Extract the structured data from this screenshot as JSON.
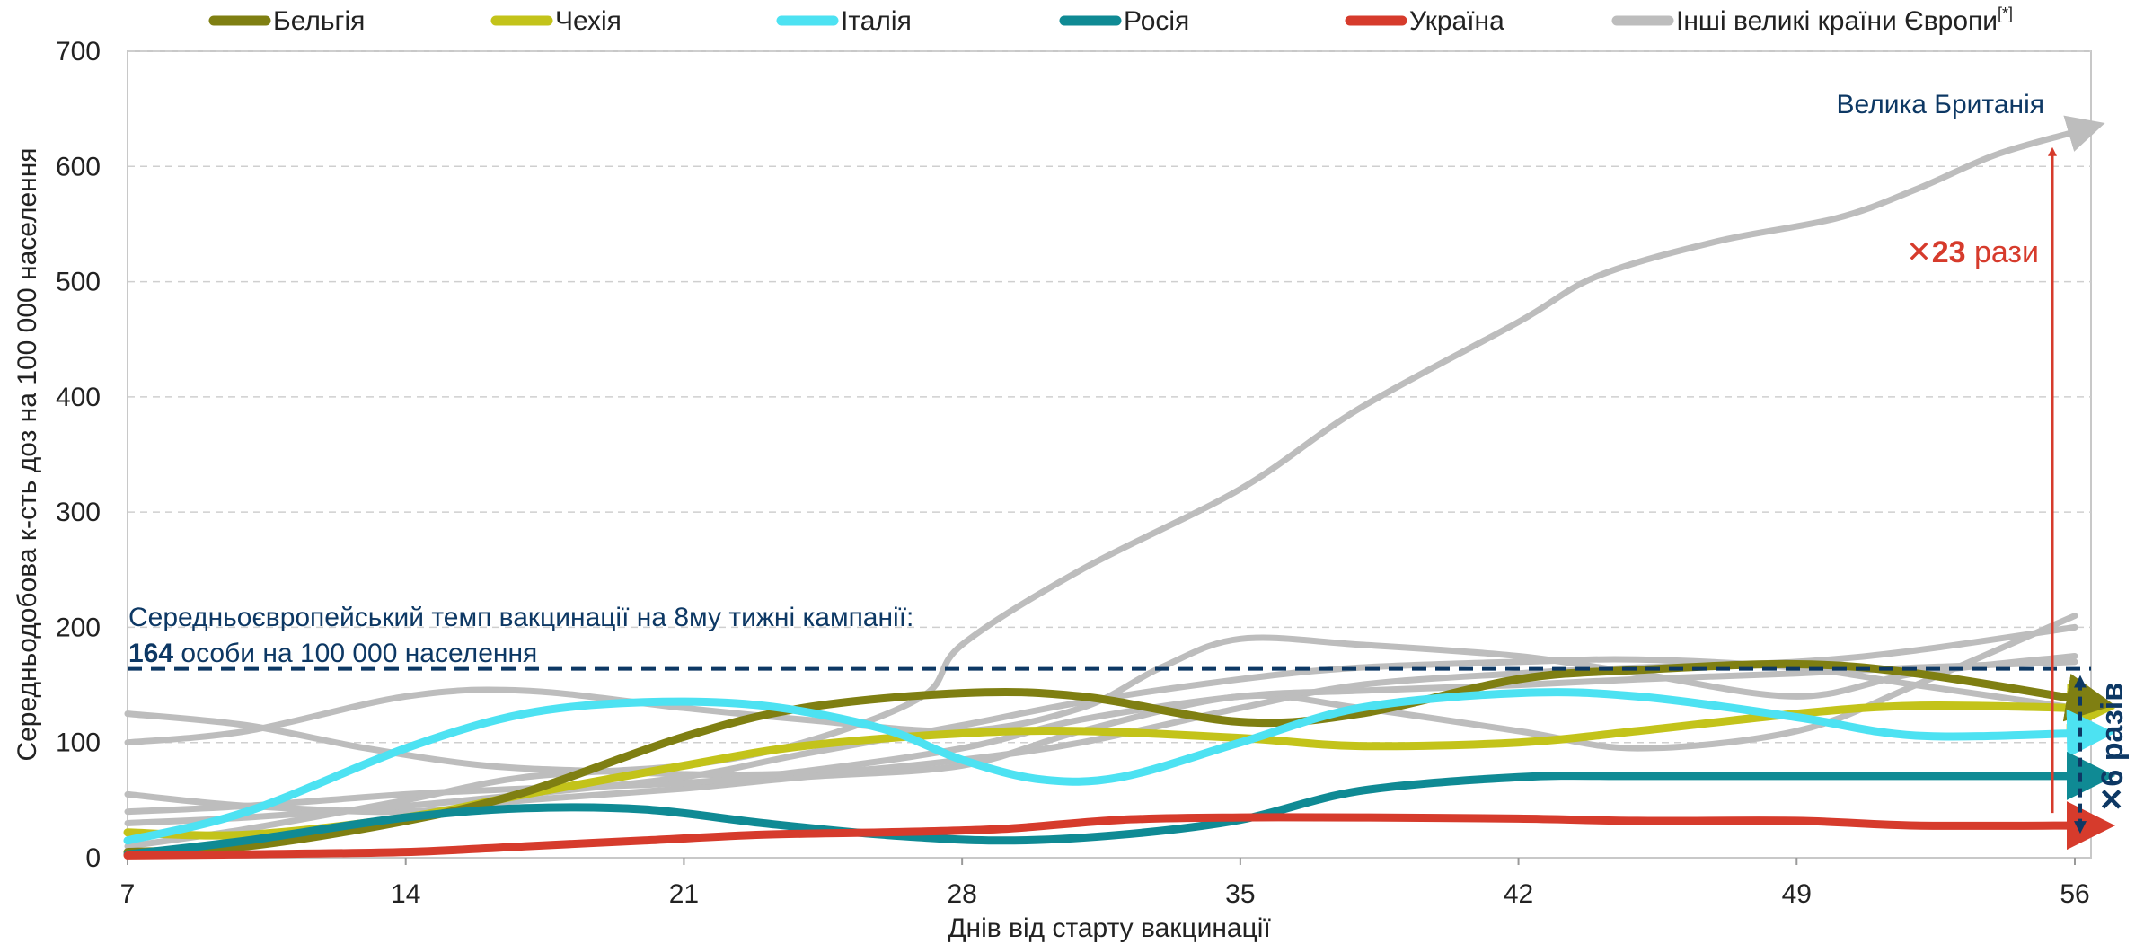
{
  "chart_data": {
    "type": "line",
    "xlabel": "Днів від старту вакцинації",
    "ylabel": "Середньодобова к-сть доз на 100 000 населення",
    "xlim": [
      7,
      56
    ],
    "ylim": [
      0,
      700
    ],
    "xticks": [
      7,
      14,
      21,
      28,
      35,
      42,
      49,
      56
    ],
    "yticks": [
      0,
      100,
      200,
      300,
      400,
      500,
      600,
      700
    ],
    "grid": "horizontal dashed",
    "legend": {
      "placement": "top",
      "superscript": "[*]"
    },
    "series": [
      {
        "name": "Бельгія",
        "color": "#7f7f12",
        "x": [
          7,
          10,
          14,
          17,
          21,
          24,
          28,
          31,
          35,
          38,
          42,
          45,
          49,
          52,
          56
        ],
        "y": [
          5,
          10,
          32,
          57,
          105,
          130,
          143,
          140,
          118,
          125,
          155,
          163,
          168,
          160,
          138
        ]
      },
      {
        "name": "Чехія",
        "color": "#c3c31a",
        "x": [
          7,
          10,
          14,
          17,
          21,
          24,
          28,
          31,
          35,
          38,
          42,
          45,
          49,
          52,
          56
        ],
        "y": [
          22,
          20,
          35,
          55,
          80,
          97,
          108,
          110,
          104,
          97,
          100,
          110,
          125,
          132,
          130
        ]
      },
      {
        "name": "Італія",
        "color": "#4de2f2",
        "x": [
          7,
          10,
          14,
          17,
          20,
          23,
          26,
          28,
          30,
          32,
          35,
          38,
          42,
          45,
          49,
          52,
          56
        ],
        "y": [
          15,
          40,
          95,
          125,
          135,
          132,
          112,
          85,
          68,
          70,
          100,
          130,
          143,
          140,
          122,
          106,
          108
        ]
      },
      {
        "name": "Росія",
        "color": "#0f8a94",
        "x": [
          7,
          10,
          14,
          17,
          20,
          23,
          26,
          29,
          32,
          35,
          38,
          42,
          45,
          49,
          52,
          56
        ],
        "y": [
          3,
          15,
          35,
          43,
          42,
          30,
          20,
          15,
          20,
          33,
          58,
          70,
          71,
          71,
          71,
          71
        ]
      },
      {
        "name": "Україна",
        "color": "#d63b2c",
        "x": [
          7,
          10,
          14,
          17,
          20,
          23,
          26,
          29,
          32,
          35,
          38,
          42,
          45,
          49,
          52,
          56
        ],
        "y": [
          2,
          3,
          5,
          10,
          15,
          20,
          22,
          25,
          33,
          35,
          35,
          34,
          32,
          32,
          28,
          28
        ]
      },
      {
        "name": "Інші великі країни Європи",
        "color": "#bdbdbd",
        "x": [
          7,
          10,
          14,
          17,
          21,
          24,
          27,
          28,
          31,
          35,
          38,
          42,
          44,
          47,
          50,
          52,
          54,
          56
        ],
        "y": [
          10,
          25,
          50,
          70,
          80,
          100,
          140,
          185,
          250,
          320,
          390,
          465,
          505,
          535,
          555,
          580,
          610,
          630
        ]
      },
      {
        "name": "Інші великі країни Європи",
        "color": "#bdbdbd",
        "x": [
          7,
          10,
          13,
          16,
          19,
          22,
          25,
          28,
          31,
          35,
          38,
          42,
          45,
          49,
          52,
          56
        ],
        "y": [
          125,
          115,
          95,
          80,
          75,
          72,
          75,
          85,
          100,
          130,
          150,
          160,
          165,
          170,
          180,
          200
        ]
      },
      {
        "name": "Інші великі країни Європи",
        "color": "#bdbdbd",
        "x": [
          7,
          10,
          14,
          17,
          21,
          24,
          28,
          31,
          33,
          35,
          38,
          42,
          45,
          49,
          52,
          56
        ],
        "y": [
          100,
          110,
          140,
          145,
          130,
          120,
          110,
          130,
          165,
          190,
          185,
          175,
          160,
          140,
          160,
          175
        ]
      },
      {
        "name": "Інші великі країни Європи",
        "color": "#bdbdbd",
        "x": [
          7,
          10,
          14,
          17,
          21,
          24,
          28,
          31,
          35,
          38,
          42,
          45,
          49,
          52,
          56
        ],
        "y": [
          55,
          45,
          40,
          50,
          60,
          70,
          80,
          110,
          140,
          130,
          110,
          95,
          110,
          150,
          210
        ]
      },
      {
        "name": "Інші великі країни Європи",
        "color": "#bdbdbd",
        "x": [
          7,
          10,
          14,
          17,
          21,
          24,
          28,
          31,
          35,
          38,
          42,
          45,
          49,
          52,
          56
        ],
        "y": [
          40,
          45,
          55,
          60,
          65,
          75,
          95,
          120,
          140,
          145,
          150,
          155,
          160,
          165,
          170
        ]
      },
      {
        "name": "Інші великі країни Європи",
        "color": "#bdbdbd",
        "x": [
          7,
          10,
          14,
          17,
          21,
          24,
          28,
          31,
          35,
          38,
          42,
          45,
          49,
          52,
          56
        ],
        "y": [
          30,
          35,
          45,
          55,
          70,
          90,
          115,
          135,
          155,
          165,
          170,
          172,
          165,
          150,
          130
        ]
      }
    ],
    "reference_line": {
      "y": 164,
      "color": "#0d3864",
      "label_line1": "Середньоєвропейський темп вакцинації на 8му тижні кампанії:",
      "label_value": "164",
      "label_line2": " особи на 100 000 населення"
    },
    "annotations": {
      "uk_label": "Велика Британія",
      "uk_value": 630,
      "ratio_uk_prefix": "✕",
      "ratio_uk_value": "23",
      "ratio_uk_suffix": " рази",
      "ratio_uk_color": "#d63b2c",
      "ratio_eu_text": "✕6 разів",
      "ratio_eu_color": "#0d3864"
    }
  }
}
